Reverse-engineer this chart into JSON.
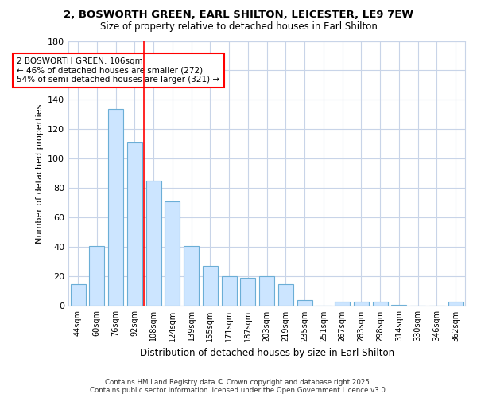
{
  "title1": "2, BOSWORTH GREEN, EARL SHILTON, LEICESTER, LE9 7EW",
  "title2": "Size of property relative to detached houses in Earl Shilton",
  "xlabel": "Distribution of detached houses by size in Earl Shilton",
  "ylabel": "Number of detached properties",
  "categories": [
    "44sqm",
    "60sqm",
    "76sqm",
    "92sqm",
    "108sqm",
    "124sqm",
    "139sqm",
    "155sqm",
    "171sqm",
    "187sqm",
    "203sqm",
    "219sqm",
    "235sqm",
    "251sqm",
    "267sqm",
    "283sqm",
    "298sqm",
    "314sqm",
    "330sqm",
    "346sqm",
    "362sqm"
  ],
  "values": [
    15,
    41,
    134,
    111,
    85,
    71,
    41,
    27,
    20,
    19,
    20,
    15,
    4,
    0,
    3,
    3,
    3,
    1,
    0,
    0,
    3
  ],
  "bar_color": "#cce5ff",
  "bar_edge_color": "#6baed6",
  "bar_edge_width": 0.8,
  "redline_x": 3.5,
  "annotation_text": "2 BOSWORTH GREEN: 106sqm\n← 46% of detached houses are smaller (272)\n54% of semi-detached houses are larger (321) →",
  "annotation_box_color": "white",
  "annotation_box_edge": "red",
  "grid_color": "#c8d4e8",
  "background_color": "white",
  "plot_bg_color": "white",
  "ylim": [
    0,
    180
  ],
  "yticks": [
    0,
    20,
    40,
    60,
    80,
    100,
    120,
    140,
    160,
    180
  ],
  "footer1": "Contains HM Land Registry data © Crown copyright and database right 2025.",
  "footer2": "Contains public sector information licensed under the Open Government Licence v3.0."
}
